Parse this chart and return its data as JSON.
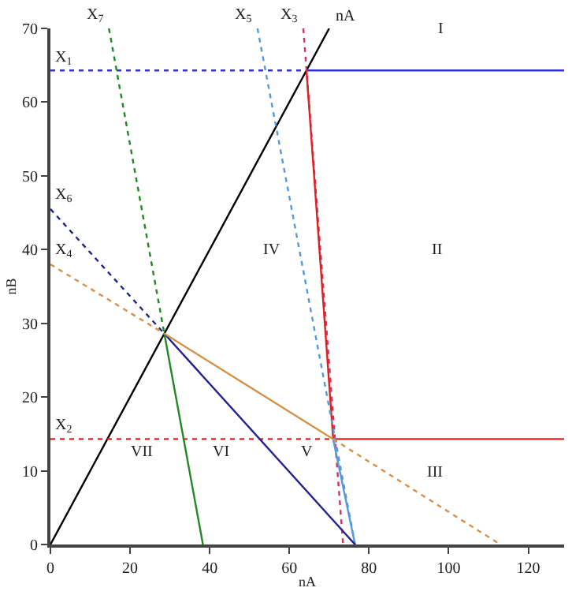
{
  "chart_data": {
    "type": "line",
    "xlabel": "nA",
    "ylabel": "nB",
    "xlim": [
      0,
      129
    ],
    "ylim": [
      0,
      70
    ],
    "xticks": [
      0,
      20,
      40,
      60,
      80,
      100,
      120
    ],
    "yticks": [
      0,
      10,
      20,
      30,
      40,
      50,
      60,
      70
    ],
    "legend": false,
    "marker": "none",
    "series": [
      {
        "name": "nA",
        "color": "#000000",
        "x": [
          0,
          70
        ],
        "values": [
          0,
          70
        ],
        "line_style": "solid"
      },
      {
        "name": "X$_{1}$",
        "color": "#3333cc",
        "x": [
          0,
          64.3
        ],
        "values": [
          64.3,
          64.3
        ],
        "line_style": "dotted"
      },
      {
        "color": "#3333cc",
        "x": [
          64.3,
          129
        ],
        "values": [
          64.3,
          64.3
        ],
        "line_style": "solid"
      },
      {
        "name": "X$_{2}$",
        "color": "#dd2222",
        "x": [
          0,
          71
        ],
        "values": [
          14.3,
          14.3
        ],
        "line_style": "dotted"
      },
      {
        "color": "#dd2222",
        "x": [
          71,
          129
        ],
        "values": [
          14.3,
          14.3
        ],
        "line_style": "solid"
      },
      {
        "name": "X$_{3}$",
        "color": "#cc3366",
        "x": [
          63.5,
          73.5
        ],
        "values": [
          70,
          0
        ],
        "line_style": "dotted"
      },
      {
        "color": "#dd2222",
        "x": [
          64.3,
          71
        ],
        "values": [
          64.3,
          14.3
        ],
        "line_style": "solid"
      },
      {
        "name": "X$_{5}$",
        "color": "#5599dd",
        "x": [
          52,
          76.5
        ],
        "values": [
          70,
          0
        ],
        "line_style": "dotted"
      },
      {
        "color": "#5599dd",
        "x": [
          71,
          76.5
        ],
        "values": [
          14.3,
          0
        ],
        "line_style": "solid"
      },
      {
        "name": "X$_{7}$",
        "color": "#228822",
        "x": [
          14.7,
          28.6
        ],
        "values": [
          70,
          28.6
        ],
        "line_style": "dotted"
      },
      {
        "color": "#228822",
        "x": [
          28.6,
          38.3
        ],
        "values": [
          28.6,
          0
        ],
        "line_style": "solid"
      },
      {
        "name": "X$_{6}$",
        "color": "#22228c",
        "x": [
          0,
          28.6
        ],
        "values": [
          45.5,
          28.6
        ],
        "line_style": "dotted"
      },
      {
        "color": "#22228c",
        "x": [
          28.6,
          76.5
        ],
        "values": [
          28.6,
          0
        ],
        "line_style": "solid"
      },
      {
        "name": "X$_{4}$",
        "color": "#d4914a",
        "x": [
          0,
          28.6
        ],
        "values": [
          38,
          28.6
        ],
        "line_style": "dotted"
      },
      {
        "color": "#d4914a",
        "x": [
          28.6,
          71
        ],
        "values": [
          28.6,
          14.3
        ],
        "line_style": "solid"
      },
      {
        "color": "#d4914a",
        "x": [
          71,
          113
        ],
        "values": [
          14.3,
          0
        ],
        "line_style": "dotted"
      }
    ],
    "annotations": [
      "I",
      "II",
      "III",
      "IV",
      "V",
      "VI",
      "VII"
    ]
  }
}
